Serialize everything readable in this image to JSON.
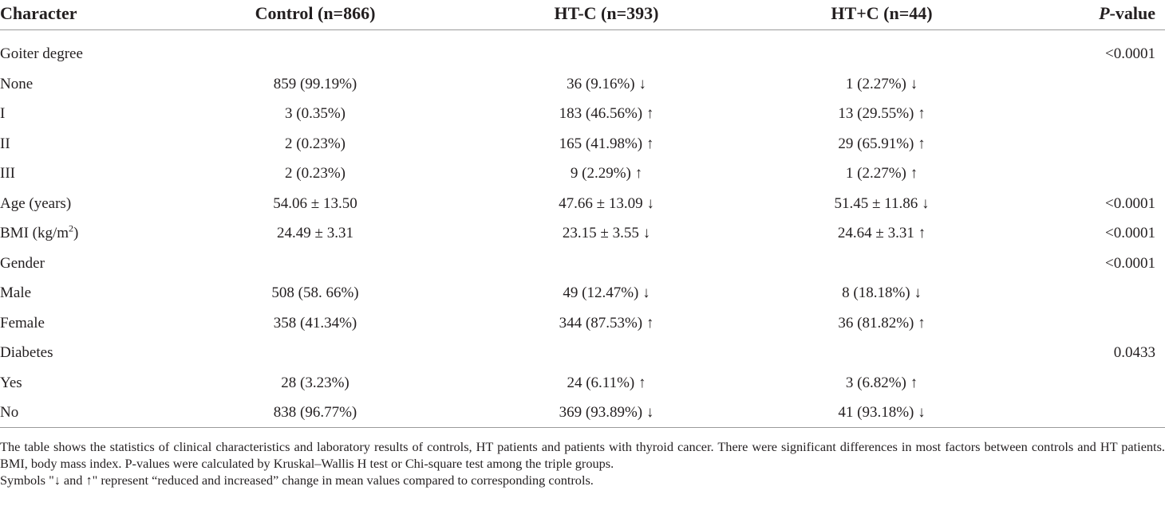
{
  "table": {
    "header": [
      "Character",
      "Control (n=866)",
      "HT-C (n=393)",
      "HT+C (n=44)",
      [
        {
          "text": "P",
          "italic": true
        },
        {
          "text": "-value"
        }
      ]
    ],
    "rows": [
      [
        "Goiter degree",
        null,
        null,
        null,
        "<0.0001"
      ],
      [
        "None",
        "859 (99.19%)",
        "36 (9.16%) ↓",
        "1 (2.27%) ↓",
        null
      ],
      [
        "I",
        "3 (0.35%)",
        "183 (46.56%) ↑",
        "13 (29.55%) ↑",
        null
      ],
      [
        "II",
        "2 (0.23%)",
        "165 (41.98%) ↑",
        "29 (65.91%) ↑",
        null
      ],
      [
        "III",
        "2 (0.23%)",
        "9 (2.29%) ↑",
        "1 (2.27%) ↑",
        null
      ],
      [
        "Age (years)",
        "54.06 ± 13.50",
        "47.66 ± 13.09 ↓",
        "51.45 ± 11.86 ↓",
        "<0.0001"
      ],
      [
        [
          {
            "text": "BMI (kg/m"
          },
          {
            "text": "2",
            "sup": true
          },
          {
            "text": ")"
          }
        ],
        "24.49 ± 3.31",
        "23.15 ± 3.55 ↓",
        "24.64 ± 3.31 ↑",
        "<0.0001"
      ],
      [
        "Gender",
        null,
        null,
        null,
        "<0.0001"
      ],
      [
        "Male",
        "508 (58. 66%)",
        "49 (12.47%) ↓",
        "8 (18.18%) ↓",
        null
      ],
      [
        "Female",
        "358 (41.34%)",
        "344 (87.53%) ↑",
        "36 (81.82%) ↑",
        null
      ],
      [
        "Diabetes",
        null,
        null,
        null,
        "0.0433"
      ],
      [
        "Yes",
        "28 (3.23%)",
        "24 (6.11%) ↑",
        "3 (6.82%) ↑",
        null
      ],
      [
        "No",
        "838 (96.77%)",
        "369 (93.89%) ↓",
        "41 (93.18%) ↓",
        null
      ]
    ]
  },
  "footnote": [
    "The table shows the statistics of clinical characteristics and laboratory results of controls, HT patients and patients with thyroid cancer. There were significant differences in most factors between controls and HT patients. BMI, body mass index. P-values were calculated by Kruskal–Wallis H test or Chi-square test among the triple groups.",
    "Symbols \"↓ and ↑\" represent “reduced and increased” change in mean values compared to corresponding controls."
  ]
}
